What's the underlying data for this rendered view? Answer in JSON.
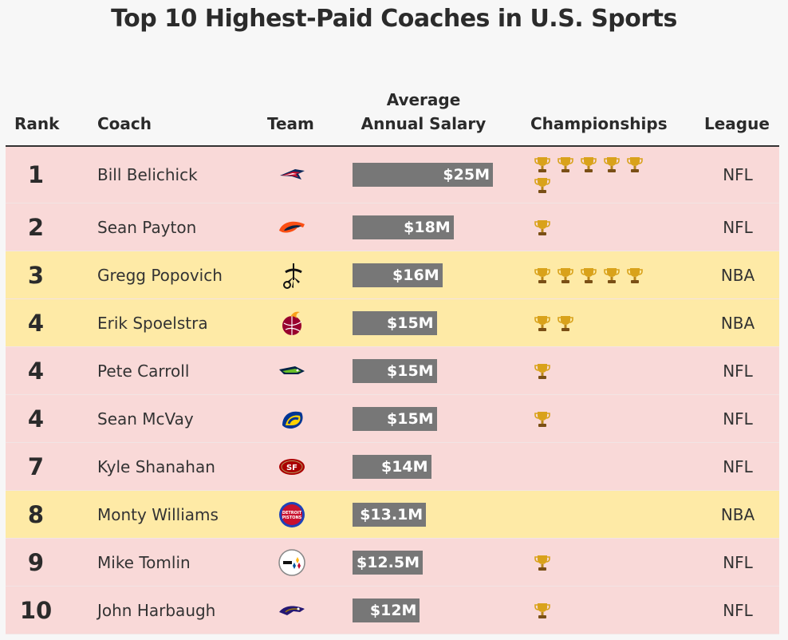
{
  "title": "Top 10 Highest-Paid Coaches in U.S. Sports",
  "columns": {
    "rank": "Rank",
    "coach": "Coach",
    "team": "Team",
    "salary_line1": "Average",
    "salary_line2": "Annual Salary",
    "championships": "Championships",
    "league": "League"
  },
  "colors": {
    "nfl_row": "#f9d9d8",
    "nba_row": "#feeaa6",
    "bar": "#777777",
    "trophy": "#d9a21b"
  },
  "chart_data": {
    "type": "table",
    "title": "Top 10 Highest-Paid Coaches in U.S. Sports",
    "salary_unit": "$M",
    "salary_max": 25,
    "rows": [
      {
        "rank": "1",
        "coach": "Bill Belichick",
        "team_icon": "patriots-logo-icon",
        "salary": 25,
        "salary_label": "$25M",
        "championships": 6,
        "league": "NFL"
      },
      {
        "rank": "2",
        "coach": "Sean Payton",
        "team_icon": "broncos-logo-icon",
        "salary": 18,
        "salary_label": "$18M",
        "championships": 1,
        "league": "NFL"
      },
      {
        "rank": "3",
        "coach": "Gregg Popovich",
        "team_icon": "spurs-logo-icon",
        "salary": 16,
        "salary_label": "$16M",
        "championships": 5,
        "league": "NBA"
      },
      {
        "rank": "4",
        "coach": "Erik Spoelstra",
        "team_icon": "heat-logo-icon",
        "salary": 15,
        "salary_label": "$15M",
        "championships": 2,
        "league": "NBA"
      },
      {
        "rank": "4",
        "coach": "Pete Carroll",
        "team_icon": "seahawks-logo-icon",
        "salary": 15,
        "salary_label": "$15M",
        "championships": 1,
        "league": "NFL"
      },
      {
        "rank": "4",
        "coach": "Sean McVay",
        "team_icon": "rams-logo-icon",
        "salary": 15,
        "salary_label": "$15M",
        "championships": 1,
        "league": "NFL"
      },
      {
        "rank": "7",
        "coach": "Kyle Shanahan",
        "team_icon": "49ers-logo-icon",
        "salary": 14,
        "salary_label": "$14M",
        "championships": 0,
        "league": "NFL"
      },
      {
        "rank": "8",
        "coach": "Monty Williams",
        "team_icon": "pistons-logo-icon",
        "salary": 13.1,
        "salary_label": "$13.1M",
        "championships": 0,
        "league": "NBA"
      },
      {
        "rank": "9",
        "coach": "Mike Tomlin",
        "team_icon": "steelers-logo-icon",
        "salary": 12.5,
        "salary_label": "$12.5M",
        "championships": 1,
        "league": "NFL"
      },
      {
        "rank": "10",
        "coach": "John Harbaugh",
        "team_icon": "ravens-logo-icon",
        "salary": 12,
        "salary_label": "$12M",
        "championships": 1,
        "league": "NFL"
      }
    ]
  }
}
